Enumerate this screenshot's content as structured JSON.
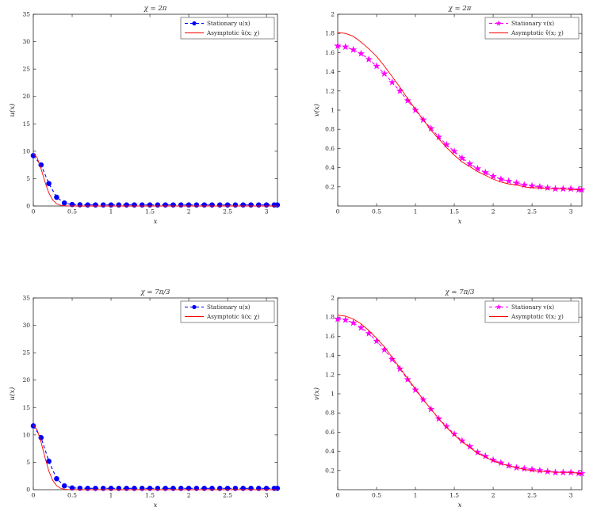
{
  "figure": {
    "background": "#ffffff",
    "axis_color": "#262626",
    "legend_border_color": "#707070"
  },
  "chart_data": [
    {
      "type": "line",
      "title": "χ = 2π",
      "xlabel": "x",
      "ylabel": "u(x)",
      "xlim": [
        0,
        3.1416
      ],
      "ylim": [
        0,
        35
      ],
      "xticks": [
        0,
        0.5,
        1,
        1.5,
        2,
        2.5,
        3
      ],
      "yticks": [
        0,
        5,
        10,
        15,
        20,
        25,
        30,
        35
      ],
      "legend_position": "northeast",
      "series": [
        {
          "name": "Stationary u(x)",
          "color": "#0000ff",
          "line": "dashed",
          "marker": "circle",
          "x": [
            0,
            0.1,
            0.2,
            0.3,
            0.4,
            0.5,
            0.6,
            0.7,
            0.8,
            0.9,
            1,
            1.1,
            1.2,
            1.3,
            1.4,
            1.5,
            1.6,
            1.7,
            1.8,
            1.9,
            2,
            2.1,
            2.2,
            2.3,
            2.4,
            2.5,
            2.6,
            2.7,
            2.8,
            2.9,
            3,
            3.1,
            3.14
          ],
          "y": [
            9.2,
            7.5,
            4.1,
            1.6,
            0.55,
            0.27,
            0.22,
            0.2,
            0.2,
            0.2,
            0.2,
            0.2,
            0.2,
            0.2,
            0.2,
            0.2,
            0.2,
            0.2,
            0.2,
            0.2,
            0.2,
            0.2,
            0.2,
            0.2,
            0.2,
            0.2,
            0.2,
            0.2,
            0.2,
            0.2,
            0.2,
            0.2,
            0.2
          ]
        },
        {
          "name": "Asymptotic û(x; χ)",
          "color": "#ff0000",
          "line": "solid",
          "marker": "none",
          "x": [
            0,
            0.05,
            0.1,
            0.15,
            0.2,
            0.25,
            0.3,
            0.35,
            0.4,
            0.45,
            0.5,
            0.6,
            0.7,
            1,
            1.5,
            2,
            2.5,
            3,
            3.14
          ],
          "y": [
            9.55,
            8.8,
            6.8,
            4.4,
            2.4,
            1.1,
            0.43,
            0.14,
            0.04,
            0.01,
            0,
            0,
            0,
            0,
            0,
            0,
            0,
            0,
            0
          ]
        }
      ]
    },
    {
      "type": "line",
      "title": "χ = 2π",
      "xlabel": "x",
      "ylabel": "v(x)",
      "xlim": [
        0,
        3.1416
      ],
      "ylim": [
        0,
        2
      ],
      "xticks": [
        0,
        0.5,
        1,
        1.5,
        2,
        2.5,
        3
      ],
      "yticks": [
        0.2,
        0.4,
        0.6,
        0.8,
        1,
        1.2,
        1.4,
        1.6,
        1.8,
        2
      ],
      "legend_position": "northeast",
      "series": [
        {
          "name": "Stationary v(x)",
          "color": "#ff00ff",
          "line": "dashed",
          "marker": "star",
          "x": [
            0,
            0.1,
            0.2,
            0.3,
            0.4,
            0.5,
            0.6,
            0.7,
            0.8,
            0.9,
            1,
            1.1,
            1.2,
            1.3,
            1.4,
            1.5,
            1.6,
            1.7,
            1.8,
            1.9,
            2,
            2.1,
            2.2,
            2.3,
            2.4,
            2.5,
            2.6,
            2.7,
            2.8,
            2.9,
            3,
            3.1,
            3.14
          ],
          "y": [
            1.67,
            1.66,
            1.63,
            1.59,
            1.53,
            1.46,
            1.38,
            1.29,
            1.2,
            1.1,
            1,
            0.9,
            0.81,
            0.72,
            0.64,
            0.57,
            0.5,
            0.44,
            0.39,
            0.35,
            0.31,
            0.28,
            0.26,
            0.24,
            0.22,
            0.21,
            0.2,
            0.19,
            0.18,
            0.18,
            0.18,
            0.17,
            0.17
          ]
        },
        {
          "name": "Asymptotic v̂(x; χ)",
          "color": "#ff0000",
          "line": "solid",
          "marker": "none",
          "x": [
            0,
            0.1,
            0.2,
            0.3,
            0.4,
            0.5,
            0.6,
            0.7,
            0.8,
            0.9,
            1,
            1.1,
            1.2,
            1.3,
            1.4,
            1.5,
            1.6,
            1.7,
            1.8,
            1.9,
            2,
            2.1,
            2.2,
            2.3,
            2.4,
            2.5,
            2.6,
            2.7,
            2.8,
            2.9,
            3,
            3.1,
            3.14
          ],
          "y": [
            1.81,
            1.8,
            1.77,
            1.71,
            1.64,
            1.56,
            1.46,
            1.35,
            1.24,
            1.12,
            1.01,
            0.9,
            0.79,
            0.7,
            0.61,
            0.53,
            0.46,
            0.41,
            0.36,
            0.32,
            0.28,
            0.25,
            0.23,
            0.22,
            0.2,
            0.19,
            0.19,
            0.18,
            0.18,
            0.18,
            0.17,
            0.17,
            0.17
          ]
        }
      ]
    },
    {
      "type": "line",
      "title": "χ = 7π/3",
      "xlabel": "x",
      "ylabel": "u(x)",
      "xlim": [
        0,
        3.1416
      ],
      "ylim": [
        0,
        35
      ],
      "xticks": [
        0,
        0.5,
        1,
        1.5,
        2,
        2.5,
        3
      ],
      "yticks": [
        0,
        5,
        10,
        15,
        20,
        25,
        30,
        35
      ],
      "legend_position": "northeast",
      "series": [
        {
          "name": "Stationary u(x)",
          "color": "#0000ff",
          "line": "dashed",
          "marker": "circle",
          "x": [
            0,
            0.1,
            0.2,
            0.3,
            0.4,
            0.5,
            0.6,
            0.7,
            0.8,
            0.9,
            1,
            1.1,
            1.2,
            1.3,
            1.4,
            1.5,
            1.6,
            1.7,
            1.8,
            1.9,
            2,
            2.1,
            2.2,
            2.3,
            2.4,
            2.5,
            2.6,
            2.7,
            2.8,
            2.9,
            3,
            3.1,
            3.14
          ],
          "y": [
            11.65,
            9.5,
            5.2,
            2,
            0.7,
            0.32,
            0.27,
            0.25,
            0.25,
            0.25,
            0.25,
            0.25,
            0.25,
            0.25,
            0.25,
            0.25,
            0.25,
            0.25,
            0.25,
            0.25,
            0.25,
            0.25,
            0.25,
            0.25,
            0.25,
            0.25,
            0.25,
            0.25,
            0.25,
            0.25,
            0.25,
            0.25,
            0.25
          ]
        },
        {
          "name": "Asymptotic û(x; χ)",
          "color": "#ff0000",
          "line": "solid",
          "marker": "none",
          "x": [
            0,
            0.05,
            0.1,
            0.15,
            0.2,
            0.25,
            0.3,
            0.35,
            0.4,
            0.45,
            0.5,
            0.6,
            0.7,
            1,
            1.5,
            2,
            2.5,
            3,
            3.14
          ],
          "y": [
            11.8,
            10.9,
            8.7,
            5.9,
            3.4,
            1.7,
            0.73,
            0.27,
            0.08,
            0.02,
            0.01,
            0,
            0,
            0,
            0,
            0,
            0,
            0,
            0
          ]
        }
      ]
    },
    {
      "type": "line",
      "title": "χ = 7π/3",
      "xlabel": "x",
      "ylabel": "v(x)",
      "xlim": [
        0,
        3.1416
      ],
      "ylim": [
        0,
        2
      ],
      "xticks": [
        0,
        0.5,
        1,
        1.5,
        2,
        2.5,
        3
      ],
      "yticks": [
        0.2,
        0.4,
        0.6,
        0.8,
        1,
        1.2,
        1.4,
        1.6,
        1.8,
        2
      ],
      "legend_position": "northeast",
      "series": [
        {
          "name": "Stationary v(x)",
          "color": "#ff00ff",
          "line": "dashed",
          "marker": "star",
          "x": [
            0,
            0.1,
            0.2,
            0.3,
            0.4,
            0.5,
            0.6,
            0.7,
            0.8,
            0.9,
            1,
            1.1,
            1.2,
            1.3,
            1.4,
            1.5,
            1.6,
            1.7,
            1.8,
            1.9,
            2,
            2.1,
            2.2,
            2.3,
            2.4,
            2.5,
            2.6,
            2.7,
            2.8,
            2.9,
            3,
            3.1,
            3.14
          ],
          "y": [
            1.78,
            1.77,
            1.74,
            1.69,
            1.63,
            1.55,
            1.46,
            1.36,
            1.26,
            1.15,
            1.04,
            0.94,
            0.84,
            0.74,
            0.66,
            0.58,
            0.51,
            0.45,
            0.39,
            0.35,
            0.31,
            0.28,
            0.25,
            0.23,
            0.22,
            0.21,
            0.2,
            0.19,
            0.18,
            0.18,
            0.18,
            0.17,
            0.17
          ]
        },
        {
          "name": "Asymptotic v̂(x; χ)",
          "color": "#ff0000",
          "line": "solid",
          "marker": "none",
          "x": [
            0,
            0.1,
            0.2,
            0.3,
            0.4,
            0.5,
            0.6,
            0.7,
            0.8,
            0.9,
            1,
            1.1,
            1.2,
            1.3,
            1.4,
            1.5,
            1.6,
            1.7,
            1.8,
            1.9,
            2,
            2.1,
            2.2,
            2.3,
            2.4,
            2.5,
            2.6,
            2.7,
            2.8,
            2.9,
            3,
            3.1,
            3.14
          ],
          "y": [
            1.82,
            1.81,
            1.78,
            1.73,
            1.66,
            1.58,
            1.49,
            1.38,
            1.27,
            1.16,
            1.05,
            0.94,
            0.84,
            0.74,
            0.65,
            0.57,
            0.5,
            0.44,
            0.38,
            0.34,
            0.3,
            0.27,
            0.25,
            0.23,
            0.21,
            0.2,
            0.19,
            0.19,
            0.18,
            0.18,
            0.18,
            0.17,
            0.17
          ]
        }
      ]
    }
  ]
}
